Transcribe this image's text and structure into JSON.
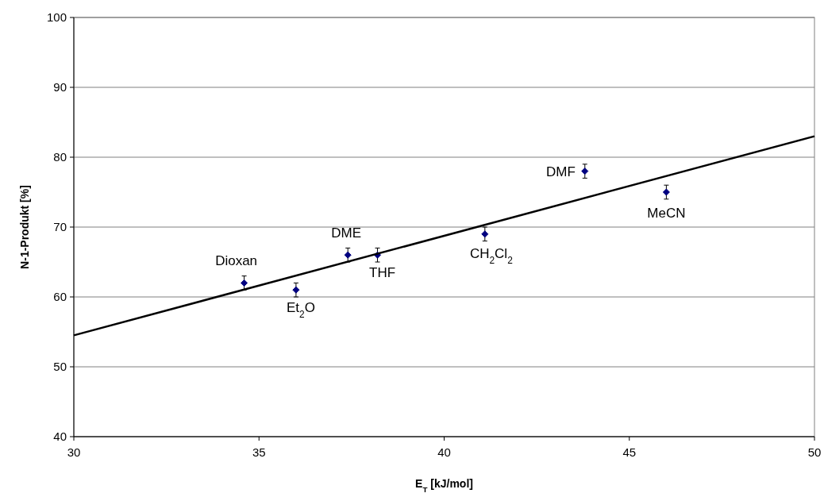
{
  "chart_data": {
    "type": "scatter",
    "xlabel": "E$_{T}$ [kJ/mol]",
    "ylabel": "N-1-Produkt [%]",
    "xlim": [
      30,
      50
    ],
    "xticks": [
      30,
      35,
      40,
      45,
      50
    ],
    "ylim": [
      40,
      100
    ],
    "yticks": [
      40,
      50,
      60,
      70,
      80,
      90,
      100
    ],
    "grid": "y",
    "marker": "diamond",
    "series": [
      {
        "color": "#000080",
        "x": [
          34.6,
          36.0,
          37.4,
          38.2,
          41.1,
          43.8,
          46.0
        ],
        "values": [
          62,
          61,
          66,
          66,
          69,
          78,
          75
        ],
        "errors": [
          1,
          1,
          1,
          1,
          1,
          1,
          1
        ]
      },
      {
        "type": "line",
        "color": "#000000",
        "marker": "none",
        "line_style": "solid",
        "x": [
          30,
          50
        ],
        "values": [
          54.5,
          83
        ]
      }
    ],
    "annotations": [
      {
        "text": "Dioxan",
        "x": 34.6,
        "y": 62
      },
      {
        "text": "Et$_{2}$O",
        "x": 36.0,
        "y": 61
      },
      {
        "text": "DME",
        "x": 37.4,
        "y": 66
      },
      {
        "text": "THF",
        "x": 38.2,
        "y": 66
      },
      {
        "text": "CH$_{2}$Cl$_{2}$",
        "x": 41.1,
        "y": 69
      },
      {
        "text": "DMF",
        "x": 43.8,
        "y": 78
      },
      {
        "text": "MeCN",
        "x": 46.0,
        "y": 75
      }
    ]
  }
}
